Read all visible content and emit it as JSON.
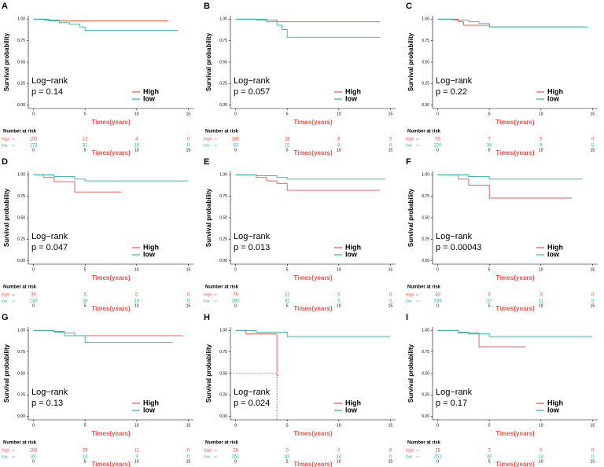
{
  "chart_data": [
    {
      "type": "step",
      "panel": "A",
      "ylabel": "Survival probability",
      "xlabel": "Times(years)",
      "test": "Log−rank",
      "pvalue": "p = 0.14",
      "table_title": "Number at risk",
      "xlim": [
        -0.5,
        15.5
      ],
      "xticks": [
        0,
        5,
        10,
        15
      ],
      "ylim": [
        -0.04,
        1.04
      ],
      "yticks": [
        {
          "value": 0,
          "label": "0.00"
        },
        {
          "value": 0.25,
          "label": "0.25"
        },
        {
          "value": 0.5,
          "label": "0.50"
        },
        {
          "value": 0.75,
          "label": "0.75"
        },
        {
          "value": 1,
          "label": "1.00"
        }
      ],
      "series": [
        {
          "name": "High",
          "color": "#e8534a",
          "x": [
            0,
            1,
            2.5,
            13
          ],
          "values": [
            1,
            0.99,
            0.98,
            0.98
          ],
          "at_risk": [
            105,
            12,
            4,
            0
          ]
        },
        {
          "name": "low",
          "color": "#2ab5a5",
          "x": [
            0,
            1.5,
            2.5,
            3.5,
            4.5,
            5,
            14
          ],
          "values": [
            1,
            0.98,
            0.96,
            0.94,
            0.91,
            0.87,
            0.87
          ],
          "at_risk": [
            173,
            31,
            10,
            0
          ]
        }
      ]
    },
    {
      "type": "step",
      "panel": "B",
      "ylabel": "Survival probability",
      "xlabel": "Times(years)",
      "test": "Log−rank",
      "pvalue": "p = 0.057",
      "table_title": "Number at risk",
      "xlim": [
        -0.5,
        15.5
      ],
      "xticks": [
        0,
        5,
        10,
        15
      ],
      "ylim": [
        -0.04,
        1.04
      ],
      "yticks": [
        {
          "value": 0,
          "label": "0.00"
        },
        {
          "value": 0.25,
          "label": "0.25"
        },
        {
          "value": 0.5,
          "label": "0.50"
        },
        {
          "value": 0.75,
          "label": "0.75"
        },
        {
          "value": 1,
          "label": "1.00"
        }
      ],
      "series": [
        {
          "name": "High",
          "color": "#e8534a",
          "x": [
            0,
            2,
            4,
            14
          ],
          "values": [
            1,
            0.99,
            0.97,
            0.97
          ],
          "at_risk": [
            186,
            28,
            8,
            0
          ]
        },
        {
          "name": "low",
          "color": "#2ab5a5",
          "x": [
            0,
            3,
            4,
            4.5,
            5,
            14
          ],
          "values": [
            1,
            0.97,
            0.93,
            0.88,
            0.79,
            0.79
          ],
          "at_risk": [
            93,
            15,
            6,
            0
          ]
        }
      ]
    },
    {
      "type": "step",
      "panel": "C",
      "ylabel": "Survival probability",
      "xlabel": "Times(years)",
      "test": "Log−rank",
      "pvalue": "p = 0.22",
      "table_title": "Number at risk",
      "xlim": [
        -0.5,
        15.5
      ],
      "xticks": [
        0,
        5,
        10,
        15
      ],
      "ylim": [
        -0.04,
        1.04
      ],
      "yticks": [
        {
          "value": 0,
          "label": "0.00"
        },
        {
          "value": 0.25,
          "label": "0.25"
        },
        {
          "value": 0.5,
          "label": "0.50"
        },
        {
          "value": 0.75,
          "label": "0.75"
        },
        {
          "value": 1,
          "label": "1.00"
        }
      ],
      "series": [
        {
          "name": "High",
          "color": "#e8534a",
          "x": [
            0,
            2,
            2.5,
            5,
            14
          ],
          "values": [
            1,
            0.97,
            0.93,
            0.91,
            0.91
          ],
          "at_risk": [
            59,
            7,
            5,
            0
          ]
        },
        {
          "name": "low",
          "color": "#2ab5a5",
          "x": [
            0,
            1.5,
            3,
            4,
            5,
            14.5
          ],
          "values": [
            1,
            0.99,
            0.97,
            0.95,
            0.91,
            0.9
          ],
          "at_risk": [
            220,
            36,
            9,
            0
          ]
        }
      ]
    },
    {
      "type": "step",
      "panel": "D",
      "ylabel": "Survival probability",
      "xlabel": "Times(years)",
      "test": "Log−rank",
      "pvalue": "p = 0.047",
      "table_title": "Number at risk",
      "xlim": [
        -0.5,
        15.5
      ],
      "xticks": [
        0,
        5,
        10,
        15
      ],
      "ylim": [
        -0.04,
        1.04
      ],
      "yticks": [
        {
          "value": 0,
          "label": "0.00"
        },
        {
          "value": 0.25,
          "label": "0.25"
        },
        {
          "value": 0.5,
          "label": "0.50"
        },
        {
          "value": 0.75,
          "label": "0.75"
        },
        {
          "value": 1,
          "label": "1.00"
        }
      ],
      "series": [
        {
          "name": "High",
          "color": "#e8534a",
          "x": [
            0,
            1,
            2,
            4,
            8.5
          ],
          "values": [
            1,
            0.97,
            0.92,
            0.8,
            0.8
          ],
          "at_risk": [
            39,
            5,
            0,
            0
          ]
        },
        {
          "name": "low",
          "color": "#2ab5a5",
          "x": [
            0,
            2,
            4,
            5,
            15
          ],
          "values": [
            1,
            0.98,
            0.95,
            0.93,
            0.93
          ],
          "at_risk": [
            240,
            38,
            14,
            0
          ]
        }
      ]
    },
    {
      "type": "step",
      "panel": "E",
      "ylabel": "Survival probability",
      "xlabel": "Times(years)",
      "test": "Log−rank",
      "pvalue": "p = 0.013",
      "table_title": "Number at risk",
      "xlim": [
        -0.5,
        15.5
      ],
      "xticks": [
        0,
        5,
        10,
        15
      ],
      "ylim": [
        -0.04,
        1.04
      ],
      "yticks": [
        {
          "value": 0,
          "label": "0.00"
        },
        {
          "value": 0.25,
          "label": "0.25"
        },
        {
          "value": 0.5,
          "label": "0.50"
        },
        {
          "value": 0.75,
          "label": "0.75"
        },
        {
          "value": 1,
          "label": "1.00"
        }
      ],
      "series": [
        {
          "name": "High",
          "color": "#e8534a",
          "x": [
            0,
            2,
            3,
            4,
            5,
            14
          ],
          "values": [
            1,
            0.97,
            0.93,
            0.9,
            0.82,
            0.82
          ],
          "at_risk": [
            79,
            12,
            5,
            0
          ]
        },
        {
          "name": "low",
          "color": "#2ab5a5",
          "x": [
            0,
            2,
            4,
            5,
            14.5
          ],
          "values": [
            1,
            0.99,
            0.97,
            0.95,
            0.95
          ],
          "at_risk": [
            200,
            31,
            9,
            0
          ]
        }
      ]
    },
    {
      "type": "step",
      "panel": "F",
      "ylabel": "Survival probability",
      "xlabel": "Times(years)",
      "test": "Log−rank",
      "pvalue": "p = 0.00043",
      "table_title": "Number at risk",
      "xlim": [
        -0.5,
        15.5
      ],
      "xticks": [
        0,
        5,
        10,
        15
      ],
      "ylim": [
        -0.04,
        1.04
      ],
      "yticks": [
        {
          "value": 0,
          "label": "0.00"
        },
        {
          "value": 0.25,
          "label": "0.25"
        },
        {
          "value": 0.5,
          "label": "0.50"
        },
        {
          "value": 0.75,
          "label": "0.75"
        },
        {
          "value": 1,
          "label": "1.00"
        }
      ],
      "series": [
        {
          "name": "High",
          "color": "#e8534a",
          "x": [
            0,
            2,
            3,
            5,
            13
          ],
          "values": [
            1,
            0.95,
            0.88,
            0.73,
            0.73
          ],
          "at_risk": [
            40,
            6,
            3,
            0
          ]
        },
        {
          "name": "low",
          "color": "#2ab5a5",
          "x": [
            0,
            3,
            5,
            14
          ],
          "values": [
            1,
            0.98,
            0.95,
            0.95
          ],
          "at_risk": [
            239,
            37,
            11,
            0
          ]
        }
      ]
    },
    {
      "type": "step",
      "panel": "G",
      "ylabel": "Survival probability",
      "xlabel": "Times(years)",
      "test": "Log−rank",
      "pvalue": "p = 0.13",
      "table_title": "Number at risk",
      "xlim": [
        -0.5,
        15.5
      ],
      "xticks": [
        0,
        5,
        10,
        15
      ],
      "ylim": [
        -0.04,
        1.04
      ],
      "yticks": [
        {
          "value": 0,
          "label": "0.00"
        },
        {
          "value": 0.25,
          "label": "0.25"
        },
        {
          "value": 0.5,
          "label": "0.50"
        },
        {
          "value": 0.75,
          "label": "0.75"
        },
        {
          "value": 1,
          "label": "1.00"
        }
      ],
      "series": [
        {
          "name": "High",
          "color": "#e8534a",
          "x": [
            0,
            2,
            3,
            4,
            14.5
          ],
          "values": [
            1,
            0.99,
            0.97,
            0.94,
            0.94
          ],
          "at_risk": [
            188,
            29,
            11,
            0
          ]
        },
        {
          "name": "low",
          "color": "#2ab5a5",
          "x": [
            0,
            2,
            3,
            5,
            13.5
          ],
          "values": [
            1,
            0.98,
            0.94,
            0.86,
            0.86
          ],
          "at_risk": [
            91,
            14,
            3,
            0
          ]
        }
      ]
    },
    {
      "type": "step",
      "panel": "H",
      "ylabel": "Survival probability",
      "xlabel": "Times(years)",
      "test": "Log−rank",
      "pvalue": "p = 0.024",
      "table_title": "Number at risk",
      "xlim": [
        -0.5,
        15.5
      ],
      "xticks": [
        0,
        5,
        10,
        15
      ],
      "ylim": [
        -0.04,
        1.04
      ],
      "yticks": [
        {
          "value": 0,
          "label": "0.00"
        },
        {
          "value": 0.25,
          "label": "0.25"
        },
        {
          "value": 0.5,
          "label": "0.50"
        },
        {
          "value": 0.75,
          "label": "0.75"
        },
        {
          "value": 1,
          "label": "1.00"
        }
      ],
      "median": [
        0.5,
        4
      ],
      "series": [
        {
          "name": "High",
          "color": "#e8534a",
          "x": [
            0,
            1,
            4,
            4.2
          ],
          "values": [
            1,
            0.96,
            0.48,
            0.48
          ],
          "at_risk": [
            28,
            0,
            0,
            0
          ]
        },
        {
          "name": "low",
          "color": "#2ab5a5",
          "x": [
            0,
            2,
            5,
            15
          ],
          "values": [
            1,
            0.98,
            0.93,
            0.93
          ],
          "at_risk": [
            251,
            43,
            14,
            0
          ]
        }
      ]
    },
    {
      "type": "step",
      "panel": "I",
      "ylabel": "Survival probability",
      "xlabel": "Times(years)",
      "test": "Log−rank",
      "pvalue": "p = 0.17",
      "table_title": "Number at risk",
      "xlim": [
        -0.5,
        15.5
      ],
      "xticks": [
        0,
        5,
        10,
        15
      ],
      "ylim": [
        -0.04,
        1.04
      ],
      "yticks": [
        {
          "value": 0,
          "label": "0.00"
        },
        {
          "value": 0.25,
          "label": "0.25"
        },
        {
          "value": 0.5,
          "label": "0.50"
        },
        {
          "value": 0.75,
          "label": "0.75"
        },
        {
          "value": 1,
          "label": "1.00"
        }
      ],
      "series": [
        {
          "name": "High",
          "color": "#e8534a",
          "x": [
            0,
            2,
            4,
            8.5
          ],
          "values": [
            1,
            0.97,
            0.81,
            0.81
          ],
          "at_risk": [
            28,
            3,
            0,
            0
          ]
        },
        {
          "name": "low",
          "color": "#2ab5a5",
          "x": [
            0,
            2,
            3,
            5,
            15
          ],
          "values": [
            1,
            0.98,
            0.96,
            0.93,
            0.93
          ],
          "at_risk": [
            251,
            40,
            14,
            0
          ]
        }
      ]
    }
  ]
}
